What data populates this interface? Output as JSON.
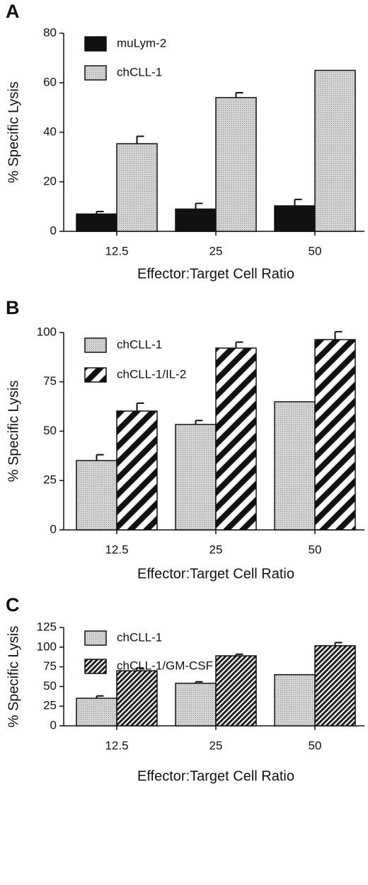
{
  "chart_data": [
    {
      "type": "bar",
      "panel": "A",
      "ylabel": "% Specific Lysis",
      "xlabel": "Effector:Target Cell Ratio",
      "categories": [
        "12.5",
        "25",
        "50"
      ],
      "ylim": [
        0,
        80
      ],
      "yticks": [
        0,
        20,
        40,
        60,
        80
      ],
      "series": [
        {
          "name": "muLym-2",
          "color": "#111111",
          "pattern": "solid",
          "values": [
            7,
            9,
            10.3
          ],
          "errors": [
            1,
            2.3,
            2.6
          ]
        },
        {
          "name": "chCLL-1",
          "color": "#c8c8c8",
          "pattern": "dots",
          "values": [
            35.4,
            54,
            65
          ],
          "errors": [
            3,
            2,
            null
          ]
        }
      ]
    },
    {
      "type": "bar",
      "panel": "B",
      "ylabel": "% Specific Lysis",
      "xlabel": "Effector:Target Cell Ratio",
      "categories": [
        "12.5",
        "25",
        "50"
      ],
      "ylim": [
        0,
        100
      ],
      "yticks": [
        0,
        25,
        50,
        75,
        100
      ],
      "series": [
        {
          "name": "chCLL-1",
          "color": "#c8c8c8",
          "pattern": "dots",
          "values": [
            35.1,
            53.4,
            64.9
          ],
          "errors": [
            3,
            2,
            null
          ]
        },
        {
          "name": "chCLL-1/IL-2",
          "color": "#111111",
          "pattern": "wide-stripes",
          "values": [
            60.2,
            92.1,
            96.4
          ],
          "errors": [
            4,
            3,
            4
          ]
        }
      ]
    },
    {
      "type": "bar",
      "panel": "C",
      "ylabel": "% Specific Lysis",
      "xlabel": "Effector:Target Cell Ratio",
      "categories": [
        "12.5",
        "25",
        "50"
      ],
      "ylim": [
        0,
        125
      ],
      "yticks": [
        0,
        25,
        50,
        75,
        100,
        125
      ],
      "series": [
        {
          "name": "chCLL-1",
          "color": "#c8c8c8",
          "pattern": "dots",
          "values": [
            35,
            54,
            65
          ],
          "errors": [
            3,
            2,
            null
          ]
        },
        {
          "name": "chCLL-1/GM-CSF",
          "color": "#111111",
          "pattern": "fine-stripes",
          "values": [
            70,
            89,
            101.8
          ],
          "errors": [
            3.5,
            2,
            4
          ]
        }
      ]
    }
  ]
}
